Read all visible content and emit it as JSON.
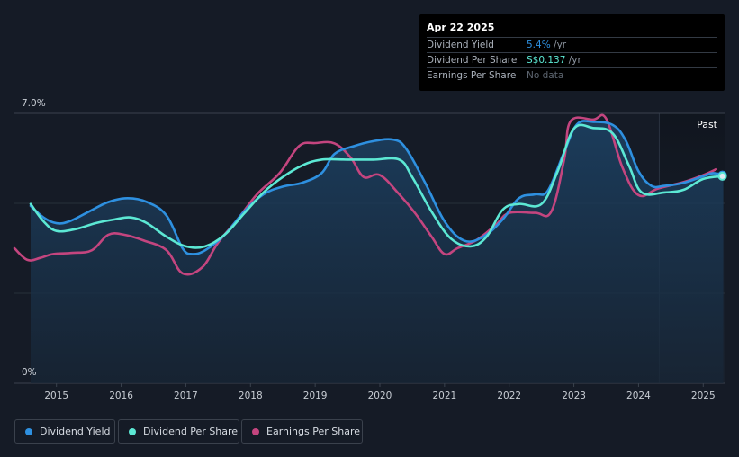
{
  "colors": {
    "background": "#151b26",
    "dividend_yield": "#2e90e0",
    "dividend_per_share": "#5ce8d4",
    "earnings_per_share": "#c4457f",
    "area_fill": "#1a3a58",
    "grid": "#2a313c",
    "axis_text": "#c8cdd4"
  },
  "tooltip": {
    "date": "Apr 22 2025",
    "rows": [
      {
        "label": "Dividend Yield",
        "value": "5.4%",
        "unit": " /yr"
      },
      {
        "label": "Dividend Per Share",
        "value": "S$0.137",
        "unit": " /yr"
      },
      {
        "label": "Earnings Per Share",
        "value": "No data",
        "unit": ""
      }
    ]
  },
  "legend": [
    {
      "label": "Dividend Yield",
      "color": "#2e90e0"
    },
    {
      "label": "Dividend Per Share",
      "color": "#5ce8d4"
    },
    {
      "label": "Earnings Per Share",
      "color": "#c4457f"
    }
  ],
  "chart_data": {
    "type": "line",
    "y_top_label": "7.0%",
    "y_bottom_label": "0%",
    "ylim": [
      0,
      7.0
    ],
    "xlim": [
      2014.35,
      2025.33
    ],
    "x_ticks": [
      2015,
      2016,
      2017,
      2018,
      2019,
      2020,
      2021,
      2022,
      2023,
      2024,
      2025
    ],
    "x_tick_labels": [
      "2015",
      "2016",
      "2017",
      "2018",
      "2019",
      "2020",
      "2021",
      "2022",
      "2023",
      "2024",
      "2025"
    ],
    "past_label": "Past",
    "past_start": 2024.32,
    "grid": true,
    "legend_position": "bottom-left",
    "series": [
      {
        "name": "Dividend Yield",
        "filled": true,
        "points": [
          [
            2014.6,
            4.6
          ],
          [
            2014.8,
            4.3
          ],
          [
            2015.0,
            4.15
          ],
          [
            2015.2,
            4.2
          ],
          [
            2015.5,
            4.45
          ],
          [
            2015.8,
            4.7
          ],
          [
            2016.1,
            4.8
          ],
          [
            2016.4,
            4.7
          ],
          [
            2016.7,
            4.35
          ],
          [
            2016.95,
            3.5
          ],
          [
            2017.1,
            3.35
          ],
          [
            2017.3,
            3.45
          ],
          [
            2017.6,
            3.85
          ],
          [
            2017.9,
            4.45
          ],
          [
            2018.2,
            4.9
          ],
          [
            2018.5,
            5.1
          ],
          [
            2018.8,
            5.2
          ],
          [
            2019.1,
            5.45
          ],
          [
            2019.3,
            5.95
          ],
          [
            2019.6,
            6.15
          ],
          [
            2019.9,
            6.28
          ],
          [
            2020.2,
            6.32
          ],
          [
            2020.4,
            6.1
          ],
          [
            2020.7,
            5.2
          ],
          [
            2021.0,
            4.2
          ],
          [
            2021.3,
            3.7
          ],
          [
            2021.6,
            3.8
          ],
          [
            2021.9,
            4.25
          ],
          [
            2022.15,
            4.8
          ],
          [
            2022.4,
            4.9
          ],
          [
            2022.6,
            5.0
          ],
          [
            2022.85,
            6.0
          ],
          [
            2023.05,
            6.72
          ],
          [
            2023.3,
            6.78
          ],
          [
            2023.6,
            6.7
          ],
          [
            2023.8,
            6.3
          ],
          [
            2024.0,
            5.5
          ],
          [
            2024.2,
            5.12
          ],
          [
            2024.4,
            5.12
          ],
          [
            2024.7,
            5.2
          ],
          [
            2025.0,
            5.37
          ],
          [
            2025.15,
            5.45
          ],
          [
            2025.31,
            5.4
          ]
        ]
      },
      {
        "name": "Dividend Per Share",
        "filled": false,
        "points": [
          [
            2014.6,
            4.65
          ],
          [
            2014.8,
            4.2
          ],
          [
            2015.0,
            3.95
          ],
          [
            2015.3,
            4.0
          ],
          [
            2015.6,
            4.15
          ],
          [
            2015.9,
            4.25
          ],
          [
            2016.15,
            4.3
          ],
          [
            2016.4,
            4.15
          ],
          [
            2016.7,
            3.8
          ],
          [
            2017.0,
            3.55
          ],
          [
            2017.3,
            3.55
          ],
          [
            2017.6,
            3.85
          ],
          [
            2017.9,
            4.4
          ],
          [
            2018.2,
            4.95
          ],
          [
            2018.5,
            5.35
          ],
          [
            2018.8,
            5.65
          ],
          [
            2019.1,
            5.8
          ],
          [
            2019.5,
            5.8
          ],
          [
            2019.9,
            5.8
          ],
          [
            2020.3,
            5.8
          ],
          [
            2020.5,
            5.35
          ],
          [
            2020.8,
            4.45
          ],
          [
            2021.1,
            3.75
          ],
          [
            2021.4,
            3.55
          ],
          [
            2021.65,
            3.8
          ],
          [
            2021.9,
            4.5
          ],
          [
            2022.15,
            4.65
          ],
          [
            2022.5,
            4.65
          ],
          [
            2022.75,
            5.5
          ],
          [
            2023.0,
            6.6
          ],
          [
            2023.3,
            6.62
          ],
          [
            2023.6,
            6.48
          ],
          [
            2023.85,
            5.65
          ],
          [
            2024.05,
            4.95
          ],
          [
            2024.4,
            4.95
          ],
          [
            2024.7,
            5.02
          ],
          [
            2025.0,
            5.3
          ],
          [
            2025.31,
            5.37
          ]
        ]
      },
      {
        "name": "Earnings Per Share",
        "filled": false,
        "points": [
          [
            2014.35,
            3.5
          ],
          [
            2014.55,
            3.2
          ],
          [
            2014.75,
            3.25
          ],
          [
            2014.95,
            3.35
          ],
          [
            2015.25,
            3.38
          ],
          [
            2015.55,
            3.45
          ],
          [
            2015.8,
            3.85
          ],
          [
            2016.05,
            3.85
          ],
          [
            2016.35,
            3.7
          ],
          [
            2016.7,
            3.45
          ],
          [
            2016.95,
            2.85
          ],
          [
            2017.25,
            3.0
          ],
          [
            2017.5,
            3.65
          ],
          [
            2017.8,
            4.25
          ],
          [
            2018.1,
            4.9
          ],
          [
            2018.45,
            5.45
          ],
          [
            2018.75,
            6.15
          ],
          [
            2019.0,
            6.23
          ],
          [
            2019.3,
            6.22
          ],
          [
            2019.55,
            5.85
          ],
          [
            2019.75,
            5.35
          ],
          [
            2020.0,
            5.4
          ],
          [
            2020.3,
            4.9
          ],
          [
            2020.55,
            4.4
          ],
          [
            2020.8,
            3.8
          ],
          [
            2021.0,
            3.35
          ],
          [
            2021.2,
            3.5
          ],
          [
            2021.5,
            3.72
          ],
          [
            2021.8,
            4.12
          ],
          [
            2022.0,
            4.42
          ],
          [
            2022.4,
            4.42
          ],
          [
            2022.65,
            4.45
          ],
          [
            2022.85,
            5.8
          ],
          [
            2022.95,
            6.8
          ],
          [
            2023.3,
            6.84
          ],
          [
            2023.5,
            6.86
          ],
          [
            2023.75,
            5.6
          ],
          [
            2024.0,
            4.88
          ],
          [
            2024.3,
            5.05
          ],
          [
            2024.7,
            5.22
          ],
          [
            2025.0,
            5.4
          ],
          [
            2025.2,
            5.55
          ]
        ]
      }
    ]
  }
}
